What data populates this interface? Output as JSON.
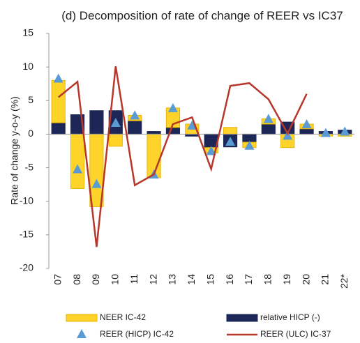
{
  "chart_data": {
    "type": "bar",
    "title": "(d) Decomposition of rate of change of REER vs IC37",
    "y_label": "Rate of change y-o-y (%)",
    "categories": [
      "07",
      "08",
      "09",
      "10",
      "11",
      "12",
      "13",
      "14",
      "15",
      "16",
      "17",
      "18",
      "19",
      "20",
      "21",
      "22*"
    ],
    "series": [
      {
        "name": "NEER IC-42",
        "type": "bar",
        "color": "#ffd42a",
        "values": [
          6.3,
          -8.1,
          -10.8,
          -1.8,
          0.8,
          -6.5,
          2.9,
          1.5,
          -0.8,
          1.0,
          -0.8,
          0.8,
          -2.0,
          0.7,
          -0.3,
          -0.3
        ]
      },
      {
        "name": "relative HICP (-)",
        "type": "bar",
        "color": "#1c2657",
        "values": [
          1.7,
          2.9,
          3.5,
          3.5,
          2.0,
          0.4,
          1.0,
          -0.3,
          -2.0,
          -1.9,
          -1.2,
          1.5,
          1.8,
          0.8,
          0.4,
          0.6
        ]
      },
      {
        "name": "REER (HICP) IC-42",
        "type": "scatter",
        "color": "#5b9bd5",
        "values": [
          8.2,
          -5.3,
          -7.5,
          1.6,
          2.7,
          -6.1,
          3.8,
          1.2,
          -2.6,
          -1.2,
          -1.8,
          2.2,
          -0.3,
          1.4,
          0.1,
          0.3
        ]
      },
      {
        "name": "REER (ULC) IC-37",
        "type": "line",
        "color": "#b8372b",
        "values": [
          5.5,
          7.8,
          -16.8,
          10.1,
          -7.6,
          -6.0,
          1.5,
          2.5,
          -5.2,
          7.2,
          7.6,
          5.2,
          0.1,
          6.0,
          null,
          null
        ]
      }
    ],
    "ylim": [
      -20,
      15
    ],
    "yticks": [
      -20,
      -15,
      -10,
      -5,
      0,
      5,
      10,
      15
    ]
  }
}
